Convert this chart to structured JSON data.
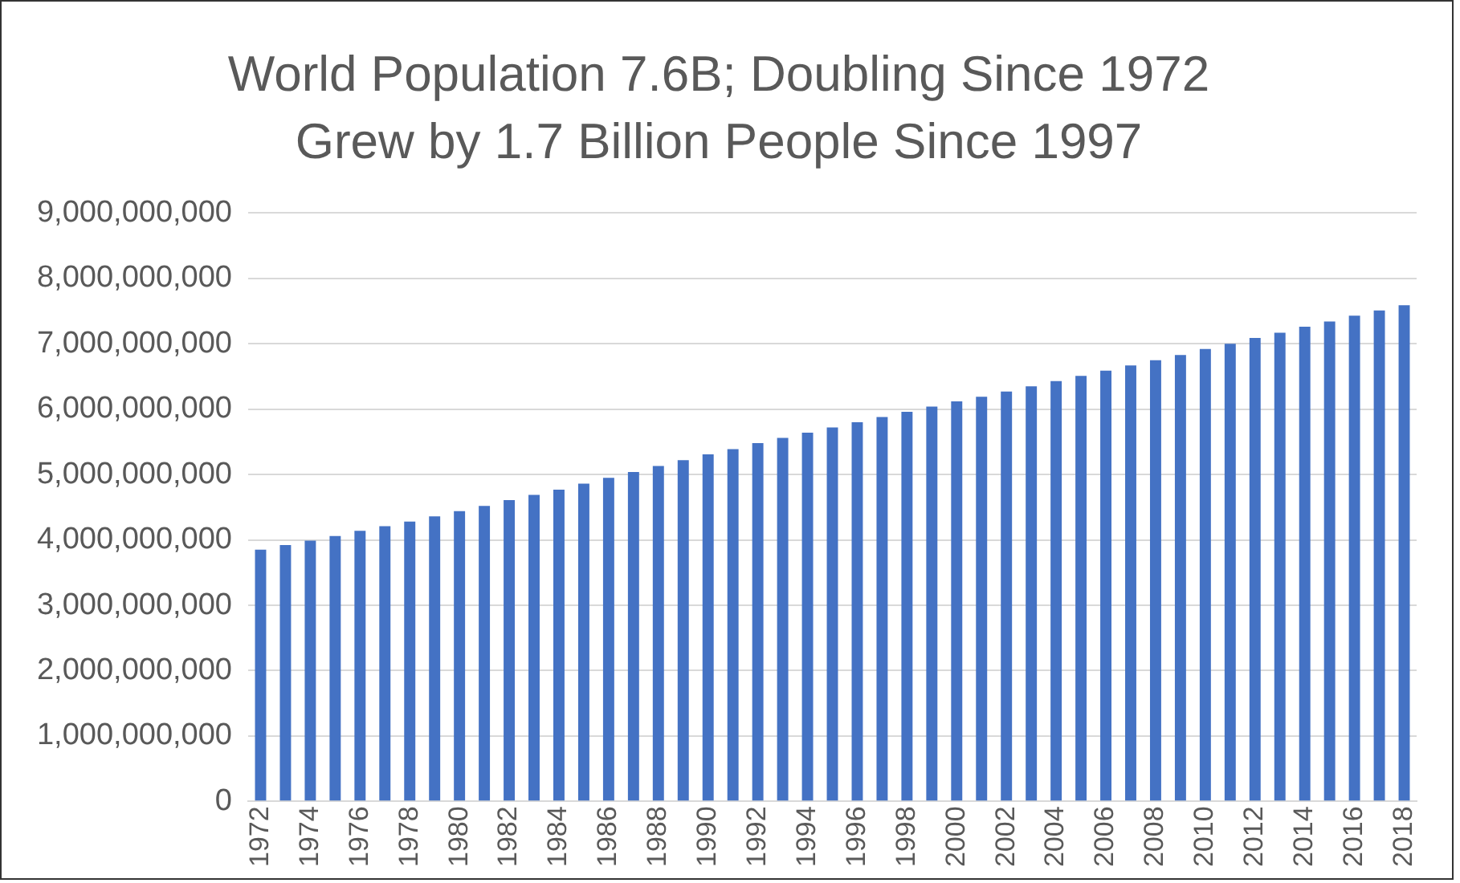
{
  "chart_data": {
    "type": "bar",
    "title": "World Population 7.6B; Doubling Since 1972",
    "subtitle": "Grew by 1.7 Billion People Since 1997",
    "categories": [
      "1972",
      null,
      "1974",
      null,
      "1976",
      null,
      "1978",
      null,
      "1980",
      null,
      "1982",
      null,
      "1984",
      null,
      "1986",
      null,
      "1988",
      null,
      "1990",
      null,
      "1992",
      null,
      "1994",
      null,
      "1996",
      null,
      "1998",
      null,
      "2000",
      null,
      "2002",
      null,
      "2004",
      null,
      "2006",
      null,
      "2008",
      null,
      "2010",
      null,
      "2012",
      null,
      "2014",
      null,
      "2016",
      null,
      "2018"
    ],
    "values": [
      3850000000,
      3920000000,
      3990000000,
      4060000000,
      4140000000,
      4210000000,
      4280000000,
      4360000000,
      4440000000,
      4520000000,
      4610000000,
      4690000000,
      4770000000,
      4860000000,
      4950000000,
      5040000000,
      5130000000,
      5220000000,
      5310000000,
      5390000000,
      5480000000,
      5560000000,
      5640000000,
      5720000000,
      5800000000,
      5880000000,
      5960000000,
      6040000000,
      6120000000,
      6190000000,
      6270000000,
      6350000000,
      6430000000,
      6510000000,
      6590000000,
      6670000000,
      6750000000,
      6830000000,
      6920000000,
      7000000000,
      7090000000,
      7170000000,
      7260000000,
      7340000000,
      7430000000,
      7510000000,
      7590000000
    ],
    "color": "#4472c4",
    "ylim": [
      0,
      9000000000
    ],
    "yticks": [
      0,
      {
        "value": 1000000000,
        "label": "1,000,000,000"
      },
      {
        "value": 2000000000,
        "label": "2,000,000,000"
      },
      {
        "value": 3000000000,
        "label": "3,000,000,000"
      },
      {
        "value": 4000000000,
        "label": "4,000,000,000"
      },
      {
        "value": 5000000000,
        "label": "5,000,000,000"
      },
      {
        "value": 6000000000,
        "label": "6,000,000,000"
      },
      {
        "value": 7000000000,
        "label": "7,000,000,000"
      },
      {
        "value": 8000000000,
        "label": "8,000,000,000"
      },
      {
        "value": 9000000000,
        "label": "9,000,000,000"
      }
    ],
    "grid": "y",
    "legend": false
  }
}
